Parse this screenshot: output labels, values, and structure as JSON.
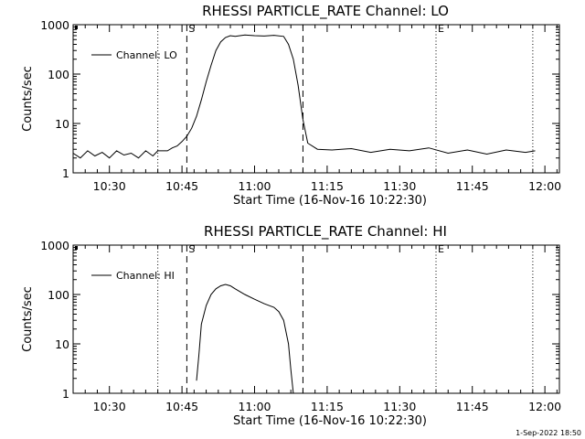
{
  "footer_timestamp": "1-Sep-2022 18:50",
  "colors": {
    "background": "#ffffff",
    "foreground": "#000000"
  },
  "chart_data": [
    {
      "type": "line",
      "title": "RHESSI PARTICLE_RATE Channel: LO",
      "xlabel": "Start Time (16-Nov-16 10:22:30)",
      "ylabel": "Counts/sec",
      "y_scale": "log",
      "xlim": [
        "10:22:30",
        "12:03:00"
      ],
      "ylim": [
        1,
        1000
      ],
      "x_ticks": [
        "10:30",
        "10:45",
        "11:00",
        "11:15",
        "11:30",
        "11:45",
        "12:00"
      ],
      "y_ticks": [
        "1",
        "10",
        "100",
        "1000"
      ],
      "legend": {
        "placement": "top-left",
        "entries": [
          "Channel: LO"
        ]
      },
      "markers": [
        {
          "label": "S",
          "x": "10:46:00",
          "style": "dashed"
        },
        {
          "label": "",
          "x": "11:10:00",
          "style": "dashed"
        },
        {
          "label": "E",
          "x": "11:37:30",
          "style": "dotted"
        }
      ],
      "dotted_lines_x": [
        "10:40:00",
        "11:37:30",
        "11:57:30"
      ],
      "series": [
        {
          "x": [
            "10:22:30",
            "10:24:00",
            "10:25:30",
            "10:27:00",
            "10:28:30",
            "10:30:00",
            "10:31:30",
            "10:33:00",
            "10:34:30",
            "10:36:00",
            "10:37:30",
            "10:39:00",
            "10:40:00",
            "10:42:00",
            "10:43:00",
            "10:44:00",
            "10:45:00",
            "10:46:00",
            "10:47:00",
            "10:48:00",
            "10:49:00",
            "10:50:00",
            "10:51:00",
            "10:52:00",
            "10:53:00",
            "10:54:00",
            "10:55:00",
            "10:56:00",
            "10:57:00",
            "10:58:00",
            "11:00:00",
            "11:02:00",
            "11:04:00",
            "11:06:00",
            "11:07:00",
            "11:08:00",
            "11:09:00",
            "11:10:00",
            "11:11:00",
            "11:13:00",
            "11:16:00",
            "11:20:00",
            "11:24:00",
            "11:28:00",
            "11:32:00",
            "11:36:00",
            "11:40:00",
            "11:44:00",
            "11:48:00",
            "11:52:00",
            "11:56:00",
            "11:58:00"
          ],
          "y": [
            2.5,
            2.0,
            2.8,
            2.2,
            2.6,
            2.0,
            2.8,
            2.3,
            2.5,
            2.0,
            2.8,
            2.2,
            2.8,
            2.8,
            3.2,
            3.5,
            4.3,
            5.5,
            8,
            14,
            30,
            70,
            150,
            300,
            450,
            550,
            600,
            580,
            600,
            620,
            600,
            590,
            610,
            580,
            400,
            200,
            60,
            12,
            4,
            3,
            2.9,
            3.1,
            2.6,
            3.0,
            2.8,
            3.2,
            2.5,
            2.9,
            2.4,
            2.9,
            2.6,
            2.8
          ]
        }
      ]
    },
    {
      "type": "line",
      "title": "RHESSI PARTICLE_RATE Channel: HI",
      "xlabel": "Start Time (16-Nov-16 10:22:30)",
      "ylabel": "Counts/sec",
      "y_scale": "log",
      "xlim": [
        "10:22:30",
        "12:03:00"
      ],
      "ylim": [
        1,
        1000
      ],
      "x_ticks": [
        "10:30",
        "10:45",
        "11:00",
        "11:15",
        "11:30",
        "11:45",
        "12:00"
      ],
      "y_ticks": [
        "1",
        "10",
        "100",
        "1000"
      ],
      "legend": {
        "placement": "top-left",
        "entries": [
          "Channel: HI"
        ]
      },
      "markers": [
        {
          "label": "S",
          "x": "10:46:00",
          "style": "dashed"
        },
        {
          "label": "",
          "x": "11:10:00",
          "style": "dashed"
        },
        {
          "label": "E",
          "x": "11:37:30",
          "style": "dotted"
        }
      ],
      "dotted_lines_x": [
        "10:40:00",
        "11:37:30",
        "11:57:30"
      ],
      "series": [
        {
          "x": [
            "10:48:00",
            "10:48:30",
            "10:49:00",
            "10:50:00",
            "10:51:00",
            "10:52:00",
            "10:53:00",
            "10:54:00",
            "10:55:00",
            "10:56:00",
            "10:58:00",
            "11:00:00",
            "11:02:00",
            "11:04:00",
            "11:05:00",
            "11:06:00",
            "11:07:00",
            "11:07:30",
            "11:08:00"
          ],
          "y": [
            1.8,
            6,
            25,
            60,
            100,
            130,
            150,
            160,
            150,
            130,
            100,
            80,
            65,
            55,
            45,
            30,
            10,
            3,
            1
          ]
        }
      ]
    }
  ]
}
